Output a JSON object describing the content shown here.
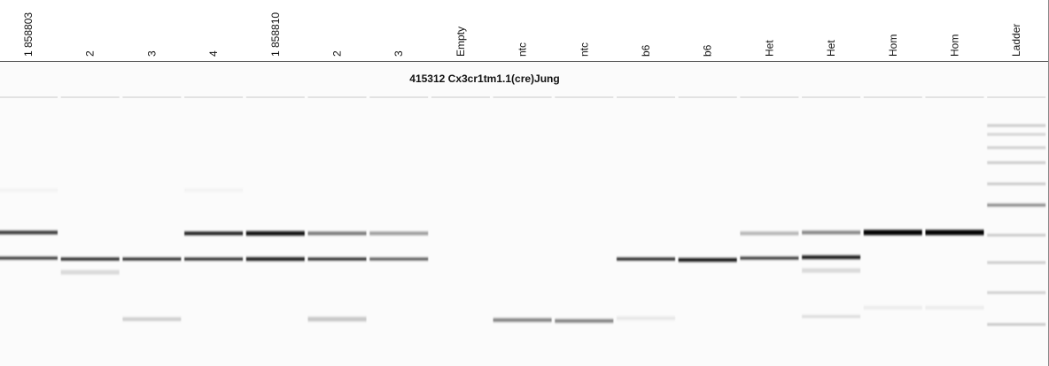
{
  "title": "415312 Cx3cr1tm1.1(cre)Jung",
  "lanes": [
    "1 858803",
    "2",
    "3",
    "4",
    "1 858810",
    "2",
    "3",
    "Empty",
    "ntc",
    "ntc",
    "b6",
    "b6",
    "Het",
    "Het",
    "Hom",
    "Hom",
    "Ladder"
  ]
}
